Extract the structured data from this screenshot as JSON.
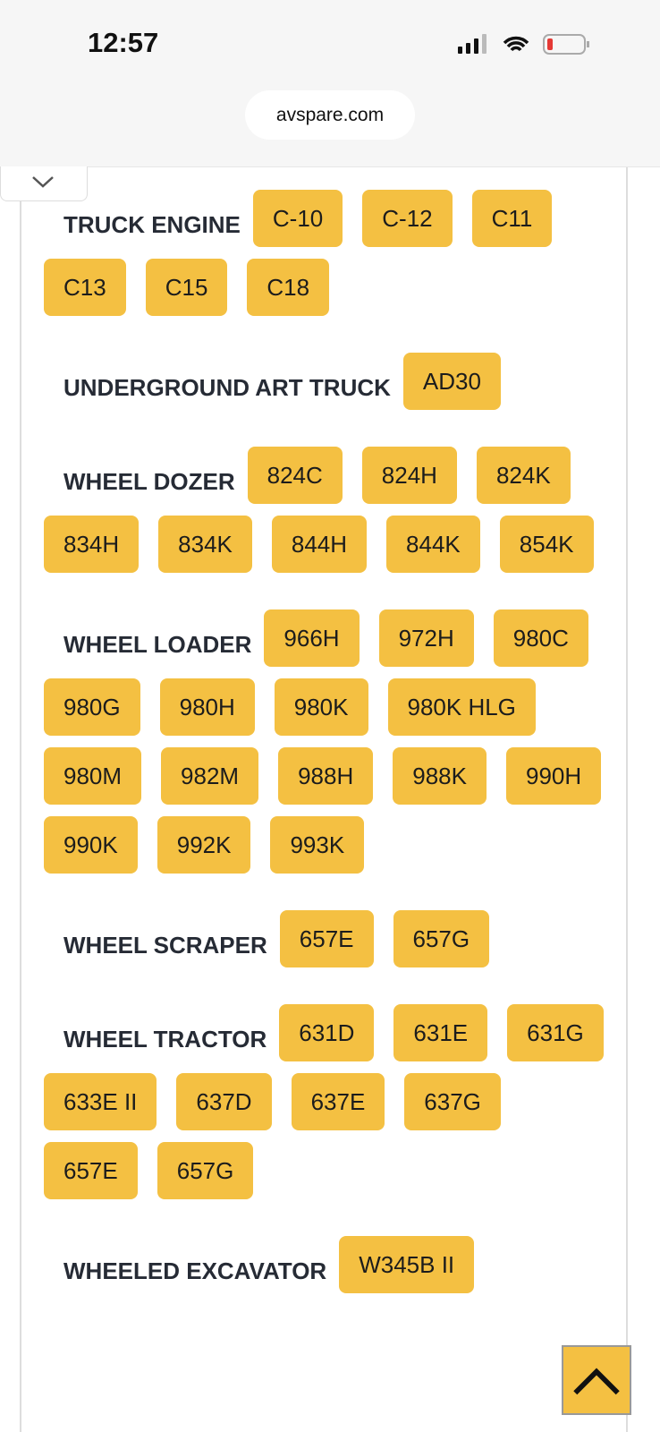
{
  "status_bar": {
    "time": "12:57"
  },
  "browser": {
    "url": "avspare.com"
  },
  "sections": [
    {
      "title": "TRUCK ENGINE",
      "items": [
        "C-10",
        "C-12",
        "C11",
        "C13",
        "C15",
        "C18"
      ]
    },
    {
      "title": "UNDERGROUND ART TRUCK",
      "items": [
        "AD30"
      ]
    },
    {
      "title": "WHEEL DOZER",
      "items": [
        "824C",
        "824H",
        "824K",
        "834H",
        "834K",
        "844H",
        "844K",
        "854K"
      ]
    },
    {
      "title": "WHEEL LOADER",
      "items": [
        "966H",
        "972H",
        "980C",
        "980G",
        "980H",
        "980K",
        "980K HLG",
        "980M",
        "982M",
        "988H",
        "988K",
        "990H",
        "990K",
        "992K",
        "993K"
      ]
    },
    {
      "title": "WHEEL SCRAPER",
      "items": [
        "657E",
        "657G"
      ]
    },
    {
      "title": "WHEEL TRACTOR",
      "items": [
        "631D",
        "631E",
        "631G",
        "633E II",
        "637D",
        "637E",
        "637G",
        "657E",
        "657G"
      ]
    },
    {
      "title": "WHEELED EXCAVATOR",
      "items": [
        "W345B II"
      ]
    }
  ]
}
